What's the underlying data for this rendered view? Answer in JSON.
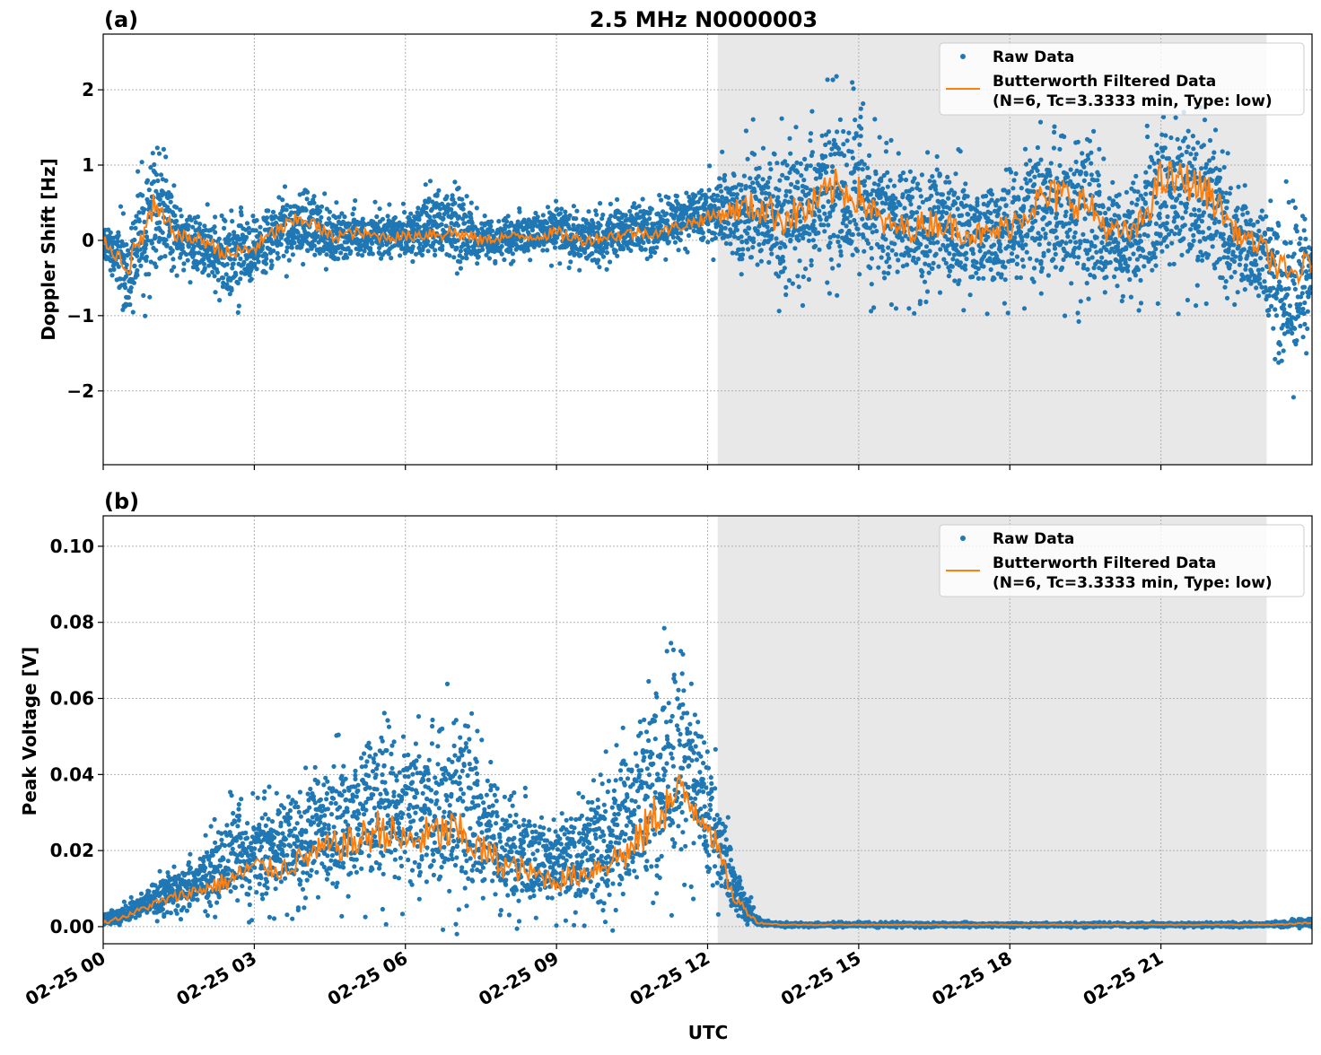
{
  "chart_data": [
    {
      "type": "scatter+line",
      "panel_label": "(a)",
      "title": "2.5 MHz N0000003",
      "xlabel": "",
      "ylabel": "Doppler Shift [Hz]",
      "ylim": [
        -2.98,
        2.74
      ],
      "xlim_hours": [
        0,
        24
      ],
      "yticks": [
        -2,
        -1,
        0,
        1,
        2
      ],
      "ytick_labels": [
        "−2",
        "−1",
        "0",
        "1",
        "2"
      ],
      "grid": true,
      "shaded_region_hours": [
        12.2,
        23.1
      ],
      "legend_position": "top-right",
      "legend": [
        "Raw Data",
        "Butterworth Filtered Data",
        "(N=6, Tc=3.3333 min, Type: low)"
      ],
      "hours": [
        0,
        0.5,
        1,
        1.5,
        2,
        2.5,
        3,
        3.5,
        4,
        4.5,
        5,
        5.5,
        6,
        6.5,
        7,
        7.5,
        8,
        8.5,
        9,
        9.5,
        10,
        10.5,
        11,
        11.5,
        12,
        12.5,
        13,
        13.5,
        14,
        14.5,
        15,
        15.5,
        16,
        16.5,
        17,
        17.5,
        18,
        18.5,
        19,
        19.5,
        20,
        20.5,
        21,
        21.5,
        22,
        22.5,
        23,
        23.5,
        24
      ],
      "series": [
        {
          "name": "Butterworth Filtered Data",
          "values": [
            0,
            -0.35,
            0.4,
            0.05,
            0,
            -0.2,
            -0.1,
            0.15,
            0.3,
            0.05,
            0.1,
            0.05,
            0.05,
            0.1,
            0.1,
            0,
            0.05,
            0.05,
            0.1,
            0,
            0.05,
            0.1,
            0.1,
            0.2,
            0.3,
            0.4,
            0.45,
            0.3,
            0.4,
            0.7,
            0.6,
            0.2,
            0.15,
            0.25,
            0.15,
            0.05,
            0.2,
            0.5,
            0.6,
            0.5,
            0.1,
            0.1,
            0.8,
            0.8,
            0.6,
            0.1,
            -0.1,
            -0.5,
            -0.3
          ]
        },
        {
          "name": "Raw Data",
          "lower": [
            -0.3,
            -1.0,
            -0.4,
            -0.3,
            -0.5,
            -0.8,
            -0.6,
            -0.3,
            -0.2,
            -0.3,
            -0.2,
            -0.25,
            -0.25,
            -0.2,
            -0.3,
            -0.3,
            -0.2,
            -0.2,
            -0.2,
            -0.3,
            -0.25,
            -0.2,
            -0.15,
            -0.05,
            0.0,
            -0.3,
            -0.6,
            -0.6,
            -0.5,
            -0.4,
            -0.5,
            -0.5,
            -0.6,
            -0.6,
            -0.6,
            -0.7,
            -0.6,
            -0.6,
            -0.5,
            -0.6,
            -0.7,
            -0.6,
            -0.6,
            -0.5,
            -0.5,
            -0.6,
            -0.9,
            -1.8,
            -1.2
          ],
          "upper": [
            0.25,
            0.2,
            1.4,
            0.4,
            0.3,
            0.2,
            0.3,
            0.6,
            0.7,
            0.4,
            0.4,
            0.35,
            0.35,
            0.7,
            0.6,
            0.3,
            0.3,
            0.35,
            0.5,
            0.3,
            0.4,
            0.5,
            0.45,
            0.6,
            0.8,
            1.0,
            1.3,
            1.3,
            1.5,
            1.7,
            1.6,
            1.0,
            0.9,
            1.0,
            0.9,
            0.8,
            1.0,
            1.4,
            1.6,
            1.4,
            0.7,
            0.8,
            1.7,
            1.6,
            1.4,
            0.6,
            0.4,
            0.3,
            0.2
          ]
        }
      ]
    },
    {
      "type": "scatter+line",
      "panel_label": "(b)",
      "xlabel": "UTC",
      "ylabel": "Peak Voltage [V]",
      "ylim": [
        -0.0045,
        0.108
      ],
      "xlim_hours": [
        0,
        24
      ],
      "yticks": [
        0,
        0.02,
        0.04,
        0.06,
        0.08,
        0.1
      ],
      "ytick_labels": [
        "0.00",
        "0.02",
        "0.04",
        "0.06",
        "0.08",
        "0.10"
      ],
      "xtick_labels": [
        "02-25 00",
        "02-25 03",
        "02-25 06",
        "02-25 09",
        "02-25 12",
        "02-25 15",
        "02-25 18",
        "02-25 21"
      ],
      "grid": true,
      "shaded_region_hours": [
        12.2,
        23.1
      ],
      "legend_position": "top-right",
      "legend": [
        "Raw Data",
        "Butterworth Filtered Data",
        "(N=6, Tc=3.3333 min, Type: low)"
      ],
      "hours": [
        0,
        0.5,
        1,
        1.5,
        2,
        2.5,
        3,
        3.5,
        4,
        4.5,
        5,
        5.5,
        6,
        6.5,
        7,
        7.5,
        8,
        8.5,
        9,
        9.5,
        10,
        10.5,
        11,
        11.5,
        12,
        12.5,
        13,
        13.5,
        14,
        14.5,
        15,
        15.5,
        16,
        16.5,
        17,
        17.5,
        18,
        18.5,
        19,
        19.5,
        20,
        20.5,
        21,
        21.5,
        22,
        22.5,
        23,
        23.5,
        24
      ],
      "series": [
        {
          "name": "Butterworth Filtered Data",
          "values": [
            0.001,
            0.003,
            0.006,
            0.008,
            0.01,
            0.012,
            0.016,
            0.015,
            0.018,
            0.021,
            0.022,
            0.026,
            0.022,
            0.024,
            0.025,
            0.02,
            0.016,
            0.014,
            0.012,
            0.014,
            0.017,
            0.02,
            0.03,
            0.035,
            0.028,
            0.008,
            0.001,
            0.0005,
            0.0005,
            0.0005,
            0.0005,
            0.0005,
            0.0005,
            0.0005,
            0.0005,
            0.0005,
            0.0005,
            0.0005,
            0.0005,
            0.0005,
            0.0005,
            0.0005,
            0.0005,
            0.0005,
            0.0005,
            0.0005,
            0.0005,
            0.0006,
            0.001
          ]
        },
        {
          "name": "Raw Data",
          "lower": [
            0,
            0.001,
            0.003,
            0.004,
            0.005,
            0.006,
            0.007,
            0.008,
            0.009,
            0.01,
            0.01,
            0.011,
            0.01,
            0.01,
            0.01,
            0.008,
            0.006,
            0.005,
            0.005,
            0.005,
            0.006,
            0.008,
            0.013,
            0.016,
            0.014,
            0.002,
            0,
            0,
            0,
            0,
            0,
            0,
            0,
            0,
            0,
            0,
            0,
            0,
            0,
            0,
            0,
            0,
            0,
            0,
            0,
            0,
            0,
            0,
            0
          ],
          "upper": [
            0.004,
            0.006,
            0.012,
            0.016,
            0.02,
            0.03,
            0.03,
            0.032,
            0.038,
            0.042,
            0.048,
            0.058,
            0.05,
            0.055,
            0.058,
            0.045,
            0.036,
            0.03,
            0.028,
            0.032,
            0.04,
            0.05,
            0.065,
            0.07,
            0.05,
            0.018,
            0.002,
            0.001,
            0.001,
            0.001,
            0.001,
            0.001,
            0.001,
            0.001,
            0.001,
            0.001,
            0.001,
            0.001,
            0.001,
            0.001,
            0.001,
            0.001,
            0.001,
            0.001,
            0.001,
            0.001,
            0.001,
            0.0015,
            0.002
          ]
        }
      ]
    }
  ],
  "colors": {
    "raw": "#1f77b4",
    "filtered": "#ff7f0e",
    "shade": "#e8e8e8"
  }
}
